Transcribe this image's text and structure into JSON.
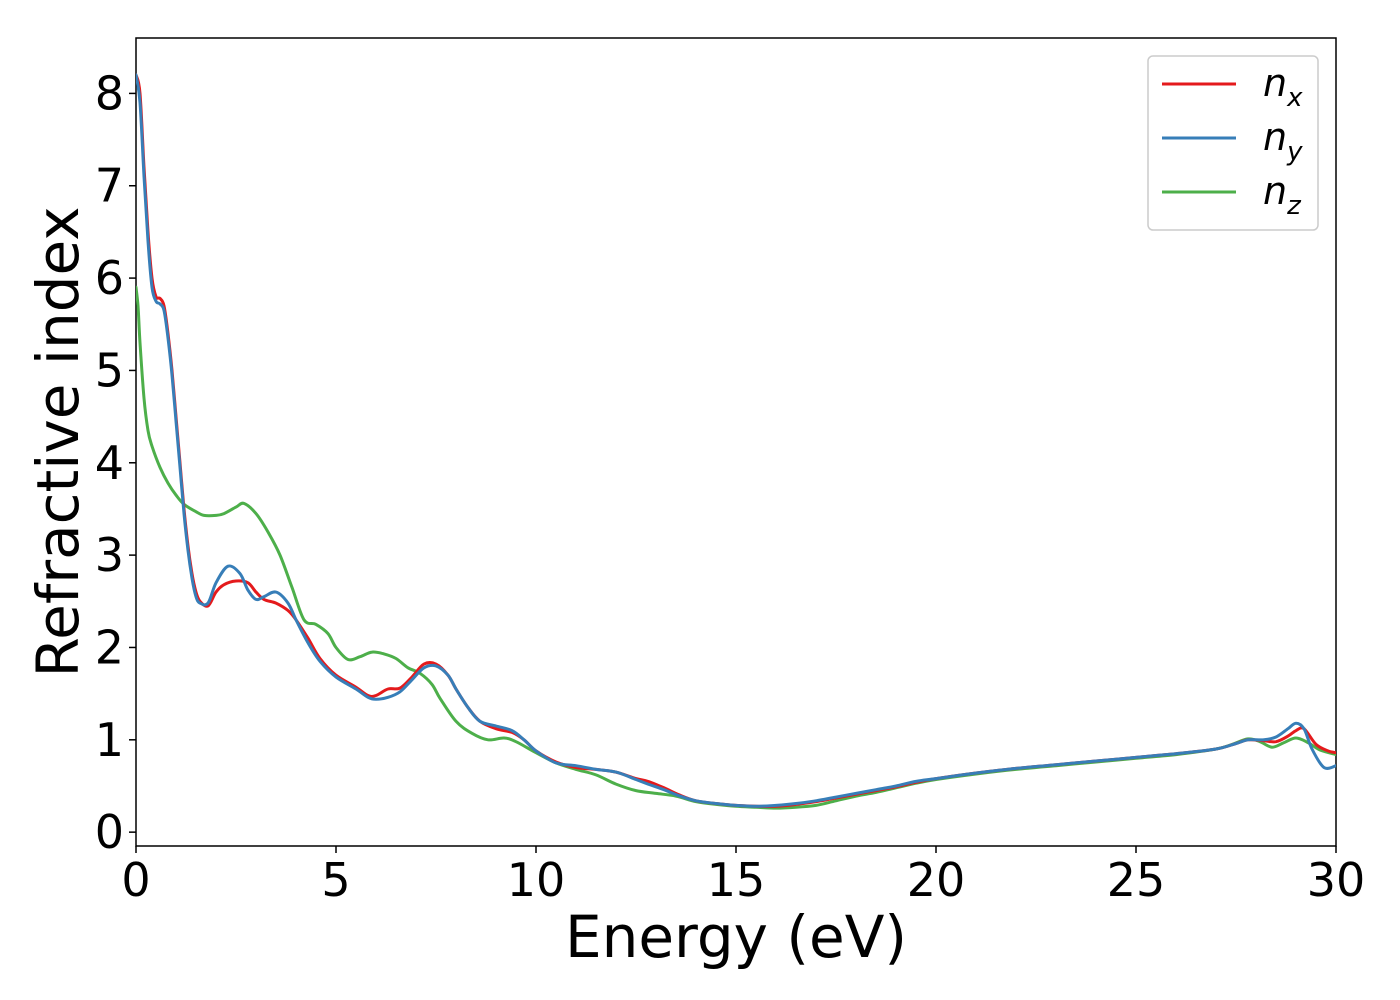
{
  "chart_data": {
    "type": "line",
    "title": "",
    "xlabel": "Energy (eV)",
    "ylabel": "Refractive index",
    "xlim": [
      0,
      30
    ],
    "ylim": [
      -0.15,
      8.6
    ],
    "xticks": [
      "0",
      "5",
      "10",
      "15",
      "20",
      "25",
      "30"
    ],
    "yticks": [
      "0",
      "1",
      "2",
      "3",
      "4",
      "5",
      "6",
      "7",
      "8"
    ],
    "grid": false,
    "legend_position": "top-right",
    "series": [
      {
        "name": "n",
        "subscript": "x",
        "color": "#e41a1c",
        "points": [
          [
            0,
            8.2
          ],
          [
            0.1,
            8.0
          ],
          [
            0.2,
            7.2
          ],
          [
            0.3,
            6.5
          ],
          [
            0.4,
            6.0
          ],
          [
            0.5,
            5.8
          ],
          [
            0.6,
            5.78
          ],
          [
            0.7,
            5.7
          ],
          [
            0.8,
            5.4
          ],
          [
            0.9,
            5.0
          ],
          [
            1.0,
            4.5
          ],
          [
            1.1,
            4.0
          ],
          [
            1.2,
            3.5
          ],
          [
            1.3,
            3.1
          ],
          [
            1.4,
            2.8
          ],
          [
            1.5,
            2.6
          ],
          [
            1.6,
            2.5
          ],
          [
            1.8,
            2.45
          ],
          [
            2.0,
            2.6
          ],
          [
            2.2,
            2.68
          ],
          [
            2.5,
            2.72
          ],
          [
            2.8,
            2.7
          ],
          [
            3.0,
            2.6
          ],
          [
            3.2,
            2.52
          ],
          [
            3.5,
            2.48
          ],
          [
            3.8,
            2.4
          ],
          [
            4.0,
            2.3
          ],
          [
            4.3,
            2.1
          ],
          [
            4.6,
            1.88
          ],
          [
            5.0,
            1.7
          ],
          [
            5.5,
            1.57
          ],
          [
            5.8,
            1.48
          ],
          [
            6.0,
            1.48
          ],
          [
            6.3,
            1.55
          ],
          [
            6.6,
            1.56
          ],
          [
            6.9,
            1.68
          ],
          [
            7.2,
            1.82
          ],
          [
            7.5,
            1.82
          ],
          [
            7.8,
            1.7
          ],
          [
            8.0,
            1.55
          ],
          [
            8.3,
            1.35
          ],
          [
            8.6,
            1.2
          ],
          [
            9.0,
            1.12
          ],
          [
            9.4,
            1.08
          ],
          [
            9.7,
            1.0
          ],
          [
            10.0,
            0.88
          ],
          [
            10.5,
            0.76
          ],
          [
            11.0,
            0.7
          ],
          [
            11.5,
            0.68
          ],
          [
            12.0,
            0.65
          ],
          [
            12.5,
            0.58
          ],
          [
            12.8,
            0.55
          ],
          [
            13.2,
            0.48
          ],
          [
            13.6,
            0.4
          ],
          [
            14.0,
            0.34
          ],
          [
            14.5,
            0.31
          ],
          [
            15.0,
            0.29
          ],
          [
            15.5,
            0.28
          ],
          [
            16.0,
            0.28
          ],
          [
            16.5,
            0.3
          ],
          [
            17.0,
            0.33
          ],
          [
            17.5,
            0.37
          ],
          [
            18.0,
            0.41
          ],
          [
            18.5,
            0.45
          ],
          [
            19.0,
            0.49
          ],
          [
            19.5,
            0.54
          ],
          [
            20.0,
            0.58
          ],
          [
            21.0,
            0.64
          ],
          [
            22.0,
            0.69
          ],
          [
            23.0,
            0.73
          ],
          [
            24.0,
            0.77
          ],
          [
            25.0,
            0.81
          ],
          [
            26.0,
            0.85
          ],
          [
            27.0,
            0.9
          ],
          [
            27.5,
            0.96
          ],
          [
            27.8,
            1.0
          ],
          [
            28.2,
            0.99
          ],
          [
            28.5,
            0.98
          ],
          [
            28.8,
            1.04
          ],
          [
            29.0,
            1.1
          ],
          [
            29.2,
            1.12
          ],
          [
            29.5,
            0.95
          ],
          [
            29.8,
            0.88
          ],
          [
            30.0,
            0.86
          ]
        ]
      },
      {
        "name": "n",
        "subscript": "y",
        "color": "#377eb8",
        "points": [
          [
            0,
            8.2
          ],
          [
            0.1,
            7.9
          ],
          [
            0.2,
            7.1
          ],
          [
            0.3,
            6.4
          ],
          [
            0.4,
            5.9
          ],
          [
            0.5,
            5.75
          ],
          [
            0.6,
            5.72
          ],
          [
            0.7,
            5.65
          ],
          [
            0.8,
            5.35
          ],
          [
            0.9,
            4.95
          ],
          [
            1.0,
            4.45
          ],
          [
            1.1,
            3.95
          ],
          [
            1.2,
            3.45
          ],
          [
            1.3,
            3.05
          ],
          [
            1.4,
            2.75
          ],
          [
            1.5,
            2.55
          ],
          [
            1.6,
            2.48
          ],
          [
            1.8,
            2.48
          ],
          [
            2.0,
            2.7
          ],
          [
            2.3,
            2.88
          ],
          [
            2.6,
            2.8
          ],
          [
            2.8,
            2.62
          ],
          [
            3.0,
            2.52
          ],
          [
            3.2,
            2.55
          ],
          [
            3.5,
            2.6
          ],
          [
            3.8,
            2.48
          ],
          [
            4.0,
            2.3
          ],
          [
            4.3,
            2.05
          ],
          [
            4.6,
            1.85
          ],
          [
            5.0,
            1.68
          ],
          [
            5.5,
            1.55
          ],
          [
            5.8,
            1.46
          ],
          [
            6.0,
            1.44
          ],
          [
            6.3,
            1.46
          ],
          [
            6.6,
            1.52
          ],
          [
            6.9,
            1.65
          ],
          [
            7.2,
            1.78
          ],
          [
            7.5,
            1.8
          ],
          [
            7.8,
            1.7
          ],
          [
            8.0,
            1.55
          ],
          [
            8.3,
            1.35
          ],
          [
            8.6,
            1.2
          ],
          [
            9.0,
            1.15
          ],
          [
            9.4,
            1.1
          ],
          [
            9.7,
            1.0
          ],
          [
            10.0,
            0.88
          ],
          [
            10.5,
            0.75
          ],
          [
            11.0,
            0.72
          ],
          [
            11.5,
            0.68
          ],
          [
            12.0,
            0.65
          ],
          [
            12.5,
            0.57
          ],
          [
            12.8,
            0.52
          ],
          [
            13.2,
            0.46
          ],
          [
            13.6,
            0.39
          ],
          [
            14.0,
            0.34
          ],
          [
            14.5,
            0.31
          ],
          [
            15.0,
            0.29
          ],
          [
            15.5,
            0.28
          ],
          [
            16.0,
            0.29
          ],
          [
            16.5,
            0.31
          ],
          [
            17.0,
            0.34
          ],
          [
            17.5,
            0.38
          ],
          [
            18.0,
            0.42
          ],
          [
            18.5,
            0.46
          ],
          [
            19.0,
            0.5
          ],
          [
            19.5,
            0.55
          ],
          [
            20.0,
            0.58
          ],
          [
            21.0,
            0.64
          ],
          [
            22.0,
            0.69
          ],
          [
            23.0,
            0.73
          ],
          [
            24.0,
            0.77
          ],
          [
            25.0,
            0.81
          ],
          [
            26.0,
            0.85
          ],
          [
            27.0,
            0.9
          ],
          [
            27.5,
            0.96
          ],
          [
            27.8,
            1.0
          ],
          [
            28.2,
            1.0
          ],
          [
            28.5,
            1.03
          ],
          [
            28.8,
            1.12
          ],
          [
            29.0,
            1.18
          ],
          [
            29.2,
            1.12
          ],
          [
            29.4,
            0.9
          ],
          [
            29.7,
            0.7
          ],
          [
            30.0,
            0.72
          ]
        ]
      },
      {
        "name": "n",
        "subscript": "z",
        "color": "#4daf4a",
        "points": [
          [
            0,
            5.9
          ],
          [
            0.05,
            5.7
          ],
          [
            0.1,
            5.3
          ],
          [
            0.2,
            4.7
          ],
          [
            0.3,
            4.35
          ],
          [
            0.4,
            4.18
          ],
          [
            0.6,
            3.95
          ],
          [
            0.8,
            3.78
          ],
          [
            1.0,
            3.65
          ],
          [
            1.2,
            3.55
          ],
          [
            1.5,
            3.47
          ],
          [
            1.7,
            3.43
          ],
          [
            2.0,
            3.43
          ],
          [
            2.2,
            3.45
          ],
          [
            2.5,
            3.52
          ],
          [
            2.7,
            3.56
          ],
          [
            3.0,
            3.45
          ],
          [
            3.3,
            3.25
          ],
          [
            3.6,
            3.0
          ],
          [
            3.9,
            2.65
          ],
          [
            4.2,
            2.3
          ],
          [
            4.5,
            2.25
          ],
          [
            4.8,
            2.15
          ],
          [
            5.0,
            2.0
          ],
          [
            5.3,
            1.87
          ],
          [
            5.6,
            1.9
          ],
          [
            5.9,
            1.95
          ],
          [
            6.2,
            1.93
          ],
          [
            6.5,
            1.88
          ],
          [
            6.8,
            1.78
          ],
          [
            7.1,
            1.72
          ],
          [
            7.4,
            1.6
          ],
          [
            7.6,
            1.45
          ],
          [
            8.0,
            1.2
          ],
          [
            8.4,
            1.07
          ],
          [
            8.8,
            1.0
          ],
          [
            9.2,
            1.02
          ],
          [
            9.5,
            0.98
          ],
          [
            10.0,
            0.86
          ],
          [
            10.5,
            0.75
          ],
          [
            11.0,
            0.68
          ],
          [
            11.5,
            0.62
          ],
          [
            12.0,
            0.52
          ],
          [
            12.5,
            0.45
          ],
          [
            13.0,
            0.42
          ],
          [
            13.5,
            0.39
          ],
          [
            14.0,
            0.33
          ],
          [
            14.5,
            0.3
          ],
          [
            15.0,
            0.28
          ],
          [
            15.5,
            0.27
          ],
          [
            16.0,
            0.26
          ],
          [
            16.5,
            0.27
          ],
          [
            17.0,
            0.29
          ],
          [
            17.5,
            0.34
          ],
          [
            18.0,
            0.39
          ],
          [
            18.5,
            0.43
          ],
          [
            19.0,
            0.48
          ],
          [
            19.5,
            0.53
          ],
          [
            20.0,
            0.57
          ],
          [
            21.0,
            0.63
          ],
          [
            22.0,
            0.68
          ],
          [
            23.0,
            0.72
          ],
          [
            24.0,
            0.76
          ],
          [
            25.0,
            0.8
          ],
          [
            26.0,
            0.84
          ],
          [
            27.0,
            0.9
          ],
          [
            27.4,
            0.95
          ],
          [
            27.8,
            1.01
          ],
          [
            28.1,
            0.98
          ],
          [
            28.4,
            0.92
          ],
          [
            28.7,
            0.97
          ],
          [
            29.0,
            1.02
          ],
          [
            29.3,
            0.97
          ],
          [
            29.6,
            0.89
          ],
          [
            30.0,
            0.84
          ]
        ]
      }
    ]
  }
}
